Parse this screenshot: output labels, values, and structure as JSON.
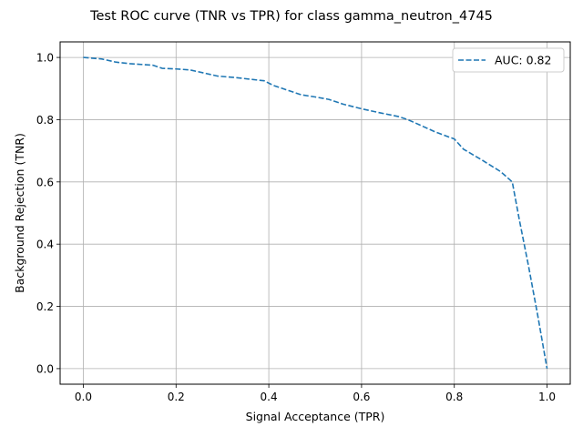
{
  "chart_data": {
    "type": "line",
    "title": "Test ROC curve (TNR vs TPR) for class gamma_neutron_4745",
    "xlabel": "Signal Acceptance (TPR)",
    "ylabel": "Background Rejection (TNR)",
    "xlim": [
      -0.05,
      1.05
    ],
    "ylim": [
      -0.05,
      1.05
    ],
    "xticks": [
      "0.0",
      "0.2",
      "0.4",
      "0.6",
      "0.8",
      "1.0"
    ],
    "yticks": [
      "0.0",
      "0.2",
      "0.4",
      "0.6",
      "0.8",
      "1.0"
    ],
    "grid": true,
    "legend_position": "top-right",
    "series": [
      {
        "name": "AUC: 0.82",
        "color": "#1f77b4",
        "line_style": "dashed",
        "x": [
          0.0,
          0.04,
          0.07,
          0.1,
          0.15,
          0.17,
          0.2,
          0.23,
          0.26,
          0.29,
          0.33,
          0.36,
          0.39,
          0.41,
          0.44,
          0.47,
          0.5,
          0.53,
          0.56,
          0.6,
          0.64,
          0.68,
          0.7,
          0.73,
          0.76,
          0.8,
          0.82,
          0.86,
          0.9,
          0.925,
          0.94,
          0.96,
          0.98,
          1.0
        ],
        "y": [
          1.0,
          0.995,
          0.985,
          0.98,
          0.975,
          0.965,
          0.963,
          0.96,
          0.95,
          0.94,
          0.935,
          0.93,
          0.925,
          0.91,
          0.895,
          0.88,
          0.873,
          0.865,
          0.85,
          0.835,
          0.822,
          0.81,
          0.8,
          0.78,
          0.76,
          0.738,
          0.705,
          0.67,
          0.633,
          0.6,
          0.48,
          0.33,
          0.17,
          0.0
        ]
      }
    ]
  }
}
